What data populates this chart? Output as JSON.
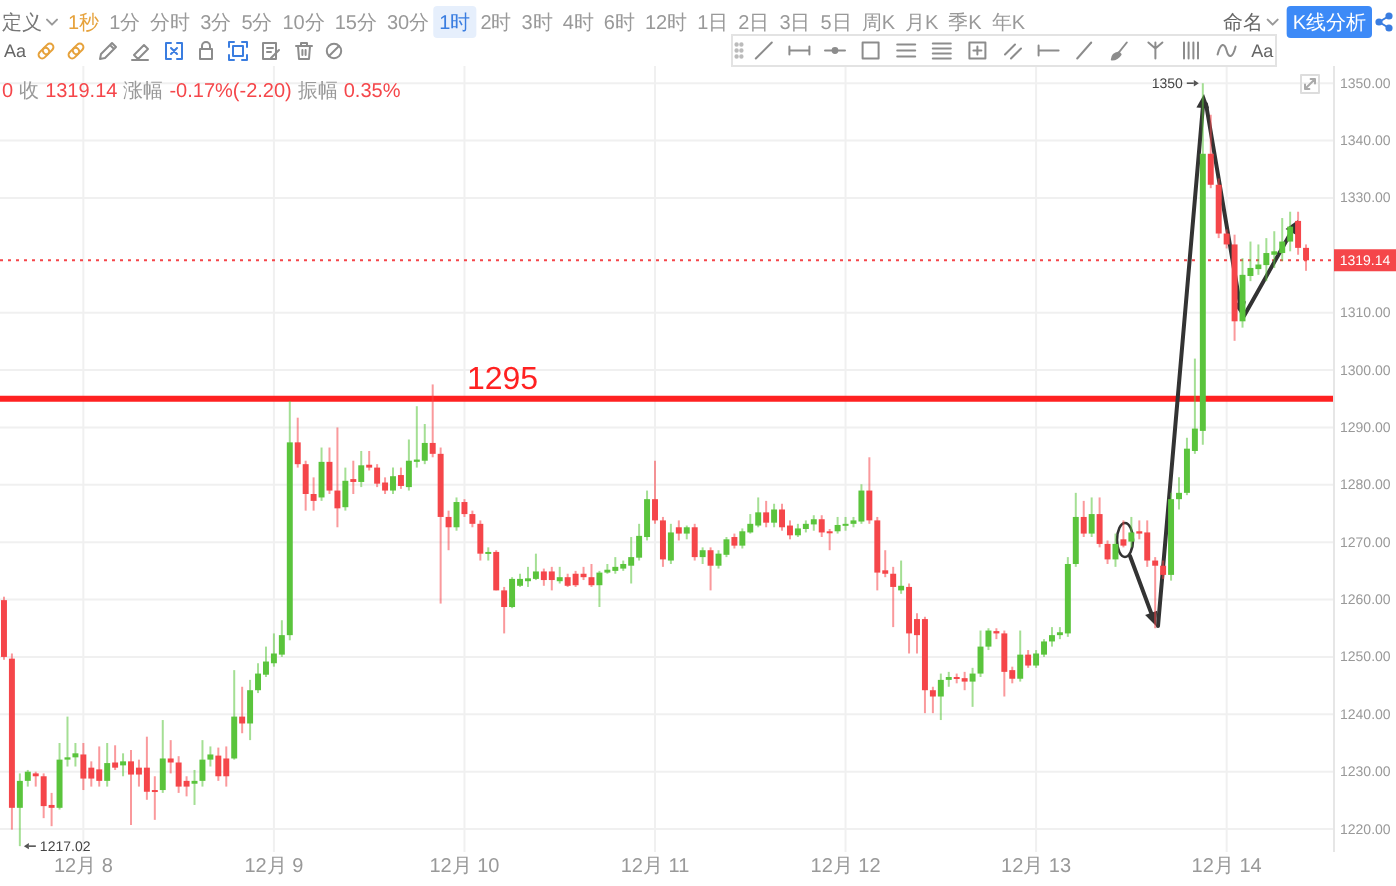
{
  "chart_data": {
    "type": "candlestick",
    "categories": [
      null,
      null,
      null,
      null,
      null,
      null,
      null,
      null,
      null,
      null,
      "12月 8",
      null,
      null,
      null,
      null,
      null,
      null,
      null,
      null,
      null,
      null,
      null,
      null,
      null,
      null,
      null,
      null,
      null,
      null,
      null,
      null,
      null,
      null,
      null,
      "12月 9",
      null,
      null,
      null,
      null,
      null,
      null,
      null,
      null,
      null,
      null,
      null,
      null,
      null,
      null,
      null,
      null,
      null,
      null,
      null,
      null,
      null,
      null,
      null,
      "12月 10",
      null,
      null,
      null,
      null,
      null,
      null,
      null,
      null,
      null,
      null,
      null,
      null,
      null,
      null,
      null,
      null,
      null,
      null,
      null,
      null,
      null,
      null,
      null,
      "12月 11",
      null,
      null,
      null,
      null,
      null,
      null,
      null,
      null,
      null,
      null,
      null,
      null,
      null,
      null,
      null,
      null,
      null,
      null,
      null,
      null,
      null,
      null,
      null,
      "12月 12",
      null,
      null,
      null,
      null,
      null,
      null,
      null,
      null,
      null,
      null,
      null,
      null,
      null,
      null,
      null,
      null,
      null,
      null,
      null,
      null,
      null,
      null,
      null,
      "12月 13",
      null,
      null,
      null,
      null,
      null,
      null,
      null,
      null,
      null,
      null,
      null,
      null,
      null,
      null,
      null,
      null,
      null,
      null,
      null,
      null,
      null,
      null,
      null,
      "12月 14",
      null,
      null,
      null,
      null,
      null,
      null,
      null,
      null,
      null,
      null
    ],
    "ohlc": [
      [
        1259.9,
        1260.5,
        1249.5,
        1250.0
      ],
      [
        1249.7,
        1250.6,
        1219.9,
        1223.7
      ],
      [
        1223.7,
        1229.7,
        1217.02,
        1228.4
      ],
      [
        1228.4,
        1230.3,
        1227.4,
        1230.0
      ],
      [
        1229.7,
        1230.0,
        1227.4,
        1229.2
      ],
      [
        1229.2,
        1229.7,
        1221.9,
        1224.0
      ],
      [
        1224.2,
        1226.3,
        1220.5,
        1223.7
      ],
      [
        1223.7,
        1235.0,
        1223.4,
        1232.1
      ],
      [
        1232.1,
        1239.6,
        1230.9,
        1232.5
      ],
      [
        1232.5,
        1235.0,
        1230.9,
        1233.2
      ],
      [
        1233.0,
        1235.0,
        1226.8,
        1228.8
      ],
      [
        1230.7,
        1231.8,
        1227.4,
        1228.8
      ],
      [
        1230.4,
        1234.4,
        1227.4,
        1228.4
      ],
      [
        1228.4,
        1235.0,
        1227.4,
        1231.5
      ],
      [
        1231.6,
        1234.6,
        1230.3,
        1230.7
      ],
      [
        1231.1,
        1233.2,
        1229.2,
        1231.8
      ],
      [
        1231.8,
        1233.8,
        1220.7,
        1229.5
      ],
      [
        1230.7,
        1232.1,
        1227.4,
        1229.5
      ],
      [
        1230.7,
        1236.1,
        1225.1,
        1226.5
      ],
      [
        1226.8,
        1229.2,
        1221.6,
        1226.5
      ],
      [
        1226.8,
        1239.0,
        1226.3,
        1232.3
      ],
      [
        1232.3,
        1235.5,
        1229.7,
        1231.6
      ],
      [
        1231.6,
        1232.7,
        1226.3,
        1227.4
      ],
      [
        1228.4,
        1229.2,
        1225.7,
        1227.4
      ],
      [
        1227.9,
        1230.3,
        1224.2,
        1228.4
      ],
      [
        1228.4,
        1235.5,
        1227.4,
        1232.1
      ],
      [
        1232.1,
        1234.4,
        1230.9,
        1233.0
      ],
      [
        1232.8,
        1234.2,
        1228.4,
        1229.2
      ],
      [
        1232.3,
        1234.4,
        1227.4,
        1229.2
      ],
      [
        1232.3,
        1247.7,
        1232.1,
        1239.6
      ],
      [
        1239.6,
        1244.8,
        1236.7,
        1238.4
      ],
      [
        1238.4,
        1246.0,
        1235.5,
        1244.2
      ],
      [
        1244.2,
        1248.9,
        1243.7,
        1247.1
      ],
      [
        1246.9,
        1251.8,
        1246.5,
        1249.2
      ],
      [
        1248.9,
        1254.1,
        1248.3,
        1250.6
      ],
      [
        1250.4,
        1256.4,
        1250.0,
        1253.8
      ],
      [
        1253.8,
        1294.6,
        1252.9,
        1287.4
      ],
      [
        1287.4,
        1291.7,
        1283.0,
        1283.6
      ],
      [
        1283.6,
        1284.2,
        1275.5,
        1278.4
      ],
      [
        1278.4,
        1281.3,
        1275.5,
        1277.2
      ],
      [
        1277.8,
        1286.5,
        1277.2,
        1284.0
      ],
      [
        1284.0,
        1286.5,
        1278.4,
        1279.0
      ],
      [
        1279.0,
        1290.0,
        1272.6,
        1275.9
      ],
      [
        1276.1,
        1283.0,
        1275.5,
        1280.7
      ],
      [
        1281.0,
        1284.2,
        1278.4,
        1280.5
      ],
      [
        1280.5,
        1285.9,
        1279.6,
        1283.4
      ],
      [
        1283.5,
        1285.9,
        1282.5,
        1283.0
      ],
      [
        1283.0,
        1283.6,
        1279.6,
        1280.2
      ],
      [
        1280.4,
        1281.3,
        1278.4,
        1279.0
      ],
      [
        1279.0,
        1283.0,
        1278.4,
        1281.5
      ],
      [
        1281.7,
        1283.0,
        1279.3,
        1279.8
      ],
      [
        1279.6,
        1287.9,
        1279.0,
        1284.2
      ],
      [
        1284.0,
        1293.7,
        1283.0,
        1284.4
      ],
      [
        1284.2,
        1290.6,
        1283.6,
        1287.3
      ],
      [
        1287.3,
        1297.5,
        1284.8,
        1285.4
      ],
      [
        1285.4,
        1286.5,
        1259.3,
        1274.4
      ],
      [
        1274.4,
        1275.5,
        1268.6,
        1272.6
      ],
      [
        1272.6,
        1277.8,
        1272.0,
        1277.0
      ],
      [
        1277.0,
        1277.5,
        1274.4,
        1274.9
      ],
      [
        1274.9,
        1275.5,
        1272.6,
        1273.2
      ],
      [
        1273.2,
        1273.8,
        1266.8,
        1268.0
      ],
      [
        1268.0,
        1269.1,
        1266.8,
        1268.3
      ],
      [
        1268.3,
        1268.6,
        1261.6,
        1261.6
      ],
      [
        1261.6,
        1262.2,
        1254.1,
        1258.7
      ],
      [
        1258.7,
        1263.9,
        1258.5,
        1263.6
      ],
      [
        1262.4,
        1264.5,
        1262.2,
        1263.6
      ],
      [
        1263.2,
        1265.7,
        1262.2,
        1263.7
      ],
      [
        1263.6,
        1268.0,
        1263.4,
        1264.9
      ],
      [
        1264.9,
        1265.4,
        1262.4,
        1263.4
      ],
      [
        1264.9,
        1265.7,
        1261.6,
        1263.4
      ],
      [
        1263.2,
        1265.7,
        1262.8,
        1263.9
      ],
      [
        1263.9,
        1264.5,
        1262.2,
        1262.4
      ],
      [
        1264.5,
        1265.0,
        1262.2,
        1262.5
      ],
      [
        1264.5,
        1265.7,
        1263.4,
        1263.9
      ],
      [
        1263.9,
        1266.2,
        1262.2,
        1262.5
      ],
      [
        1262.5,
        1265.0,
        1258.7,
        1264.7
      ],
      [
        1264.7,
        1266.2,
        1264.5,
        1265.2
      ],
      [
        1265.0,
        1267.4,
        1264.5,
        1265.7
      ],
      [
        1265.4,
        1266.8,
        1265.0,
        1266.2
      ],
      [
        1265.9,
        1270.9,
        1262.8,
        1267.4
      ],
      [
        1267.3,
        1273.2,
        1266.8,
        1271.1
      ],
      [
        1270.9,
        1279.0,
        1270.3,
        1277.5
      ],
      [
        1277.5,
        1284.2,
        1273.2,
        1273.8
      ],
      [
        1273.8,
        1274.4,
        1265.7,
        1267.0
      ],
      [
        1266.8,
        1273.2,
        1266.2,
        1271.7
      ],
      [
        1272.6,
        1273.8,
        1270.3,
        1271.5
      ],
      [
        1271.5,
        1272.9,
        1270.5,
        1272.6
      ],
      [
        1272.6,
        1273.2,
        1266.8,
        1267.4
      ],
      [
        1267.4,
        1269.1,
        1266.2,
        1268.6
      ],
      [
        1268.6,
        1269.1,
        1261.6,
        1265.9
      ],
      [
        1265.9,
        1268.6,
        1265.4,
        1268.0
      ],
      [
        1267.8,
        1270.9,
        1267.4,
        1270.5
      ],
      [
        1270.9,
        1271.5,
        1268.9,
        1269.4
      ],
      [
        1269.4,
        1272.4,
        1268.9,
        1271.9
      ],
      [
        1271.7,
        1274.9,
        1271.5,
        1273.2
      ],
      [
        1272.9,
        1277.8,
        1272.6,
        1275.2
      ],
      [
        1275.2,
        1277.2,
        1272.6,
        1273.4
      ],
      [
        1273.4,
        1276.7,
        1272.6,
        1275.7
      ],
      [
        1275.7,
        1276.7,
        1272.0,
        1272.6
      ],
      [
        1272.9,
        1273.8,
        1270.5,
        1271.2
      ],
      [
        1271.2,
        1273.2,
        1270.9,
        1272.4
      ],
      [
        1272.3,
        1273.8,
        1271.7,
        1273.2
      ],
      [
        1273.1,
        1274.7,
        1272.0,
        1274.0
      ],
      [
        1274.0,
        1274.7,
        1270.9,
        1271.7
      ],
      [
        1271.9,
        1272.3,
        1268.6,
        1271.7
      ],
      [
        1271.9,
        1274.4,
        1271.5,
        1273.0
      ],
      [
        1272.9,
        1274.4,
        1272.0,
        1273.2
      ],
      [
        1273.2,
        1274.4,
        1272.6,
        1273.8
      ],
      [
        1273.6,
        1280.1,
        1273.2,
        1279.0
      ],
      [
        1279.0,
        1284.8,
        1273.2,
        1273.8
      ],
      [
        1273.8,
        1274.4,
        1261.6,
        1264.7
      ],
      [
        1265.1,
        1268.6,
        1263.9,
        1264.5
      ],
      [
        1264.5,
        1265.7,
        1255.2,
        1262.2
      ],
      [
        1261.6,
        1266.8,
        1261.0,
        1262.4
      ],
      [
        1262.2,
        1262.8,
        1250.6,
        1254.1
      ],
      [
        1256.6,
        1257.6,
        1250.6,
        1253.8
      ],
      [
        1256.6,
        1257.0,
        1240.2,
        1244.2
      ],
      [
        1244.2,
        1244.8,
        1240.2,
        1243.1
      ],
      [
        1243.1,
        1247.1,
        1239.0,
        1246.0
      ],
      [
        1246.0,
        1247.4,
        1244.8,
        1246.5
      ],
      [
        1246.5,
        1247.1,
        1245.4,
        1246.2
      ],
      [
        1246.3,
        1247.4,
        1244.2,
        1245.7
      ],
      [
        1245.7,
        1248.1,
        1241.3,
        1247.1
      ],
      [
        1247.1,
        1254.6,
        1246.5,
        1251.8
      ],
      [
        1251.8,
        1255.0,
        1251.2,
        1254.6
      ],
      [
        1254.5,
        1255.0,
        1253.1,
        1254.1
      ],
      [
        1254.1,
        1254.6,
        1243.1,
        1247.4
      ],
      [
        1247.7,
        1248.3,
        1245.4,
        1246.2
      ],
      [
        1246.2,
        1254.6,
        1245.7,
        1250.4
      ],
      [
        1250.4,
        1251.2,
        1248.1,
        1248.5
      ],
      [
        1248.5,
        1251.2,
        1248.1,
        1250.6
      ],
      [
        1250.4,
        1253.1,
        1250.0,
        1252.7
      ],
      [
        1252.7,
        1255.2,
        1251.8,
        1253.8
      ],
      [
        1253.8,
        1255.2,
        1253.1,
        1254.3
      ],
      [
        1254.1,
        1267.4,
        1253.5,
        1266.2
      ],
      [
        1266.2,
        1278.6,
        1265.7,
        1274.4
      ],
      [
        1274.4,
        1277.2,
        1270.9,
        1271.5
      ],
      [
        1271.5,
        1277.8,
        1270.9,
        1274.9
      ],
      [
        1274.9,
        1277.8,
        1269.1,
        1269.7
      ],
      [
        1269.7,
        1270.3,
        1266.2,
        1267.0
      ],
      [
        1267.0,
        1271.5,
        1265.7,
        1269.7
      ],
      [
        1270.5,
        1273.8,
        1269.1,
        1269.4
      ],
      [
        1270.1,
        1274.4,
        1269.1,
        1271.7
      ],
      [
        1271.9,
        1273.8,
        1270.5,
        1271.5
      ],
      [
        1271.7,
        1273.8,
        1265.7,
        1266.8
      ],
      [
        1266.8,
        1267.4,
        1255.0,
        1265.9
      ],
      [
        1265.9,
        1266.8,
        1263.6,
        1264.3
      ],
      [
        1264.3,
        1278.6,
        1263.3,
        1277.5
      ],
      [
        1277.5,
        1281.3,
        1275.7,
        1278.6
      ],
      [
        1278.6,
        1288.2,
        1278.2,
        1286.3
      ],
      [
        1285.9,
        1302.0,
        1285.4,
        1289.8
      ],
      [
        1289.4,
        1350.0,
        1287.0,
        1337.7
      ],
      [
        1337.7,
        1344.5,
        1331.7,
        1332.3
      ],
      [
        1332.3,
        1333.4,
        1323.0,
        1323.8
      ],
      [
        1323.8,
        1324.5,
        1321.2,
        1321.9
      ],
      [
        1321.9,
        1323.6,
        1305.1,
        1308.5
      ],
      [
        1308.5,
        1319.5,
        1307.4,
        1316.6
      ],
      [
        1316.4,
        1322.4,
        1315.5,
        1317.8
      ],
      [
        1317.6,
        1321.9,
        1316.6,
        1318.4
      ],
      [
        1318.3,
        1323.0,
        1315.5,
        1320.4
      ],
      [
        1320.1,
        1324.2,
        1317.8,
        1320.7
      ],
      [
        1320.4,
        1326.5,
        1319.0,
        1322.4
      ],
      [
        1322.4,
        1327.6,
        1320.7,
        1325.0
      ],
      [
        1326.0,
        1327.6,
        1320.1,
        1321.3
      ],
      [
        1321.3,
        1321.9,
        1317.3,
        1319.14
      ]
    ],
    "colors": [
      "#f5464a",
      "#f5464a",
      "#5ac43c",
      "#5ac43c",
      "#f5464a",
      "#f5464a",
      "#f5464a",
      "#5ac43c",
      "#5ac43c",
      "#5ac43c",
      "#f5464a",
      "#f5464a",
      "#f5464a",
      "#5ac43c",
      "#f5464a",
      "#5ac43c",
      "#f5464a",
      "#f5464a",
      "#f5464a",
      "#f5464a",
      "#5ac43c",
      "#f5464a",
      "#f5464a",
      "#f5464a",
      "#5ac43c",
      "#5ac43c",
      "#5ac43c",
      "#f5464a",
      "#f5464a",
      "#5ac43c",
      "#f5464a",
      "#5ac43c",
      "#5ac43c",
      "#5ac43c",
      "#5ac43c",
      "#5ac43c",
      "#5ac43c",
      "#f5464a",
      "#f5464a",
      "#f5464a",
      "#5ac43c",
      "#f5464a",
      "#f5464a",
      "#5ac43c",
      "#f5464a",
      "#5ac43c",
      "#f5464a",
      "#f5464a",
      "#f5464a",
      "#5ac43c",
      "#f5464a",
      "#5ac43c",
      "#5ac43c",
      "#5ac43c",
      "#f5464a",
      "#f5464a",
      "#f5464a",
      "#5ac43c",
      "#f5464a",
      "#f5464a",
      "#f5464a",
      "#5ac43c",
      "#f5464a",
      "#f5464a",
      "#5ac43c",
      "#5ac43c",
      "#5ac43c",
      "#5ac43c",
      "#f5464a",
      "#f5464a",
      "#5ac43c",
      "#f5464a",
      "#f5464a",
      "#f5464a",
      "#f5464a",
      "#5ac43c",
      "#5ac43c",
      "#5ac43c",
      "#5ac43c",
      "#5ac43c",
      "#5ac43c",
      "#5ac43c",
      "#f5464a",
      "#f5464a",
      "#5ac43c",
      "#f5464a",
      "#5ac43c",
      "#f5464a",
      "#5ac43c",
      "#f5464a",
      "#5ac43c",
      "#5ac43c",
      "#f5464a",
      "#5ac43c",
      "#5ac43c",
      "#5ac43c",
      "#f5464a",
      "#5ac43c",
      "#f5464a",
      "#f5464a",
      "#5ac43c",
      "#5ac43c",
      "#5ac43c",
      "#f5464a",
      "#f5464a",
      "#5ac43c",
      "#5ac43c",
      "#5ac43c",
      "#5ac43c",
      "#f5464a",
      "#f5464a",
      "#f5464a",
      "#f5464a",
      "#5ac43c",
      "#f5464a",
      "#f5464a",
      "#f5464a",
      "#f5464a",
      "#5ac43c",
      "#5ac43c",
      "#f5464a",
      "#f5464a",
      "#5ac43c",
      "#5ac43c",
      "#5ac43c",
      "#f5464a",
      "#f5464a",
      "#f5464a",
      "#5ac43c",
      "#f5464a",
      "#5ac43c",
      "#5ac43c",
      "#5ac43c",
      "#5ac43c",
      "#5ac43c",
      "#5ac43c",
      "#f5464a",
      "#5ac43c",
      "#f5464a",
      "#f5464a",
      "#5ac43c",
      "#f5464a",
      "#5ac43c",
      "#f5464a",
      "#f5464a",
      "#f5464a",
      "#f5464a",
      "#5ac43c",
      "#5ac43c",
      "#5ac43c",
      "#5ac43c",
      "#5ac43c",
      "#f5464a",
      "#f5464a",
      "#f5464a",
      "#f5464a",
      "#5ac43c",
      "#5ac43c",
      "#5ac43c",
      "#5ac43c",
      "#5ac43c",
      "#5ac43c",
      "#5ac43c",
      "#f5464a",
      "#f5464a"
    ],
    "ylim": [
      1216,
      1353
    ],
    "yticks": [
      {
        "value": 1220,
        "label": "1220.00"
      },
      {
        "value": 1230,
        "label": "1230.00"
      },
      {
        "value": 1240,
        "label": "1240.00"
      },
      {
        "value": 1250,
        "label": "1250.00"
      },
      {
        "value": 1260,
        "label": "1260.00"
      },
      {
        "value": 1270,
        "label": "1270.00"
      },
      {
        "value": 1280,
        "label": "1280.00"
      },
      {
        "value": 1290,
        "label": "1290.00"
      },
      {
        "value": 1300,
        "label": "1300.00"
      },
      {
        "value": 1310,
        "label": "1310.00"
      },
      {
        "value": 1330,
        "label": "1330.00"
      },
      {
        "value": 1340,
        "label": "1340.00"
      },
      {
        "value": 1350,
        "label": "1350.00"
      }
    ],
    "grid": true,
    "ref_lines": [
      {
        "axis": "y",
        "value": 1295,
        "label": "1295",
        "color": "#ff2121"
      },
      {
        "axis": "y",
        "value": 1319.14,
        "label": "1319.14",
        "color": "#f5464a",
        "line_style": "dotted"
      }
    ],
    "annotations": [
      "定义",
      "1秒",
      "1分",
      "分时",
      "3分",
      "5分",
      "10分",
      "15分",
      "30分",
      "1时",
      "2时",
      "3时",
      "4时",
      "6时",
      "12时",
      "1日",
      "2日",
      "3日",
      "5日",
      "周K",
      "月K",
      "季K",
      "年K",
      "Aa",
      "Aa",
      "命名",
      "K线分析",
      "0",
      "收",
      "1319.14",
      "涨幅",
      "-0.17%(-2.20)",
      "振幅",
      "0.35%",
      "1350",
      "1217.02"
    ]
  }
}
